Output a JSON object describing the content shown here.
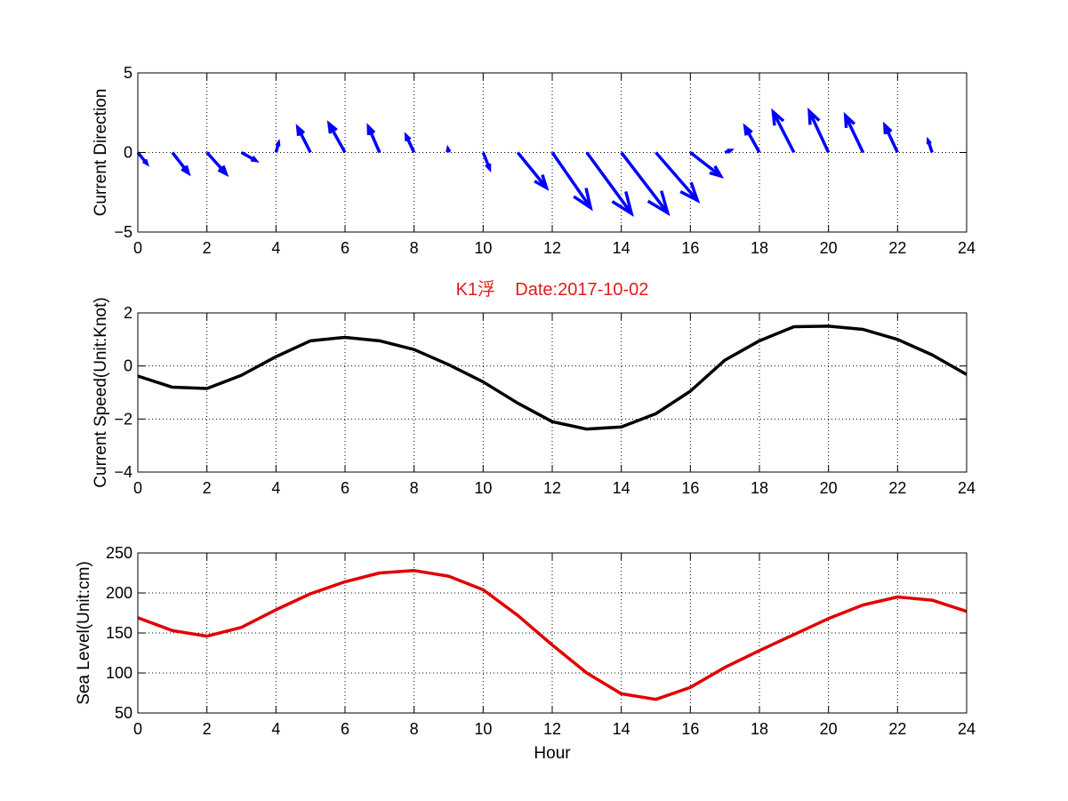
{
  "figure": {
    "title": "K1浮    Date:2017-10-02",
    "title_color": "#e31a1c",
    "background": "#ffffff"
  },
  "chart_data": [
    {
      "type": "quiver",
      "ylabel": "Current Direction",
      "xlabel": "",
      "xlim": [
        0,
        24
      ],
      "ylim": [
        -5,
        5
      ],
      "xticks": [
        0,
        2,
        4,
        6,
        8,
        10,
        12,
        14,
        16,
        18,
        20,
        22,
        24
      ],
      "yticks": [
        -5,
        0,
        5
      ],
      "grid": true,
      "color": "#0000ff",
      "vectors": [
        {
          "x": 0,
          "u": 0.28,
          "v": -0.75
        },
        {
          "x": 1,
          "u": 0.5,
          "v": -1.4
        },
        {
          "x": 2,
          "u": 0.6,
          "v": -1.45
        },
        {
          "x": 3,
          "u": 0.45,
          "v": -0.55
        },
        {
          "x": 4,
          "u": 0.08,
          "v": 0.65
        },
        {
          "x": 5,
          "u": -0.4,
          "v": 1.7
        },
        {
          "x": 6,
          "u": -0.5,
          "v": 1.95
        },
        {
          "x": 7,
          "u": -0.35,
          "v": 1.75
        },
        {
          "x": 8,
          "u": -0.25,
          "v": 1.15
        },
        {
          "x": 9,
          "u": -0.02,
          "v": 0.25
        },
        {
          "x": 10,
          "u": 0.2,
          "v": -1.1
        },
        {
          "x": 11,
          "u": 0.9,
          "v": -2.4
        },
        {
          "x": 12,
          "u": 1.2,
          "v": -3.75
        },
        {
          "x": 13,
          "u": 1.4,
          "v": -4.15
        },
        {
          "x": 14,
          "u": 1.45,
          "v": -4.1
        },
        {
          "x": 15,
          "u": 1.3,
          "v": -3.25
        },
        {
          "x": 16,
          "u": 0.95,
          "v": -1.6
        },
        {
          "x": 17,
          "u": 0.18,
          "v": 0.15
        },
        {
          "x": 18,
          "u": -0.45,
          "v": 1.75
        },
        {
          "x": 19,
          "u": -0.65,
          "v": 2.75
        },
        {
          "x": 20,
          "u": -0.6,
          "v": 2.8
        },
        {
          "x": 21,
          "u": -0.55,
          "v": 2.5
        },
        {
          "x": 22,
          "u": -0.4,
          "v": 1.85
        },
        {
          "x": 23,
          "u": -0.12,
          "v": 0.8
        }
      ]
    },
    {
      "type": "line",
      "ylabel": "Current Speed(Unit:Knot)",
      "xlabel": "",
      "xlim": [
        0,
        24
      ],
      "ylim": [
        -4,
        2
      ],
      "xticks": [
        0,
        2,
        4,
        6,
        8,
        10,
        12,
        14,
        16,
        18,
        20,
        22,
        24
      ],
      "yticks": [
        -4,
        -2,
        0,
        2
      ],
      "grid": true,
      "color": "#000000",
      "x": [
        0,
        1,
        2,
        3,
        4,
        5,
        6,
        7,
        8,
        9,
        10,
        11,
        12,
        13,
        14,
        15,
        16,
        17,
        18,
        19,
        20,
        21,
        22,
        23,
        24
      ],
      "y": [
        -0.38,
        -0.8,
        -0.85,
        -0.35,
        0.35,
        0.95,
        1.08,
        0.95,
        0.62,
        0.05,
        -0.6,
        -1.4,
        -2.1,
        -2.38,
        -2.3,
        -1.8,
        -0.95,
        0.22,
        0.95,
        1.48,
        1.5,
        1.38,
        1.0,
        0.42,
        -0.32
      ]
    },
    {
      "type": "line",
      "ylabel": "Sea Level(Unit:cm)",
      "xlabel": "Hour",
      "xlim": [
        0,
        24
      ],
      "ylim": [
        50,
        250
      ],
      "xticks": [
        0,
        2,
        4,
        6,
        8,
        10,
        12,
        14,
        16,
        18,
        20,
        22,
        24
      ],
      "yticks": [
        50,
        100,
        150,
        200,
        250
      ],
      "grid": true,
      "color": "#e00000",
      "x": [
        0,
        1,
        2,
        3,
        4,
        5,
        6,
        7,
        8,
        9,
        10,
        11,
        12,
        13,
        14,
        15,
        16,
        17,
        18,
        19,
        20,
        21,
        22,
        23,
        24
      ],
      "y": [
        169,
        153,
        146,
        157,
        179,
        199,
        214,
        225,
        228,
        221,
        204,
        172,
        135,
        100,
        74,
        67,
        82,
        107,
        128,
        148,
        168,
        185,
        195,
        191,
        177
      ]
    }
  ]
}
